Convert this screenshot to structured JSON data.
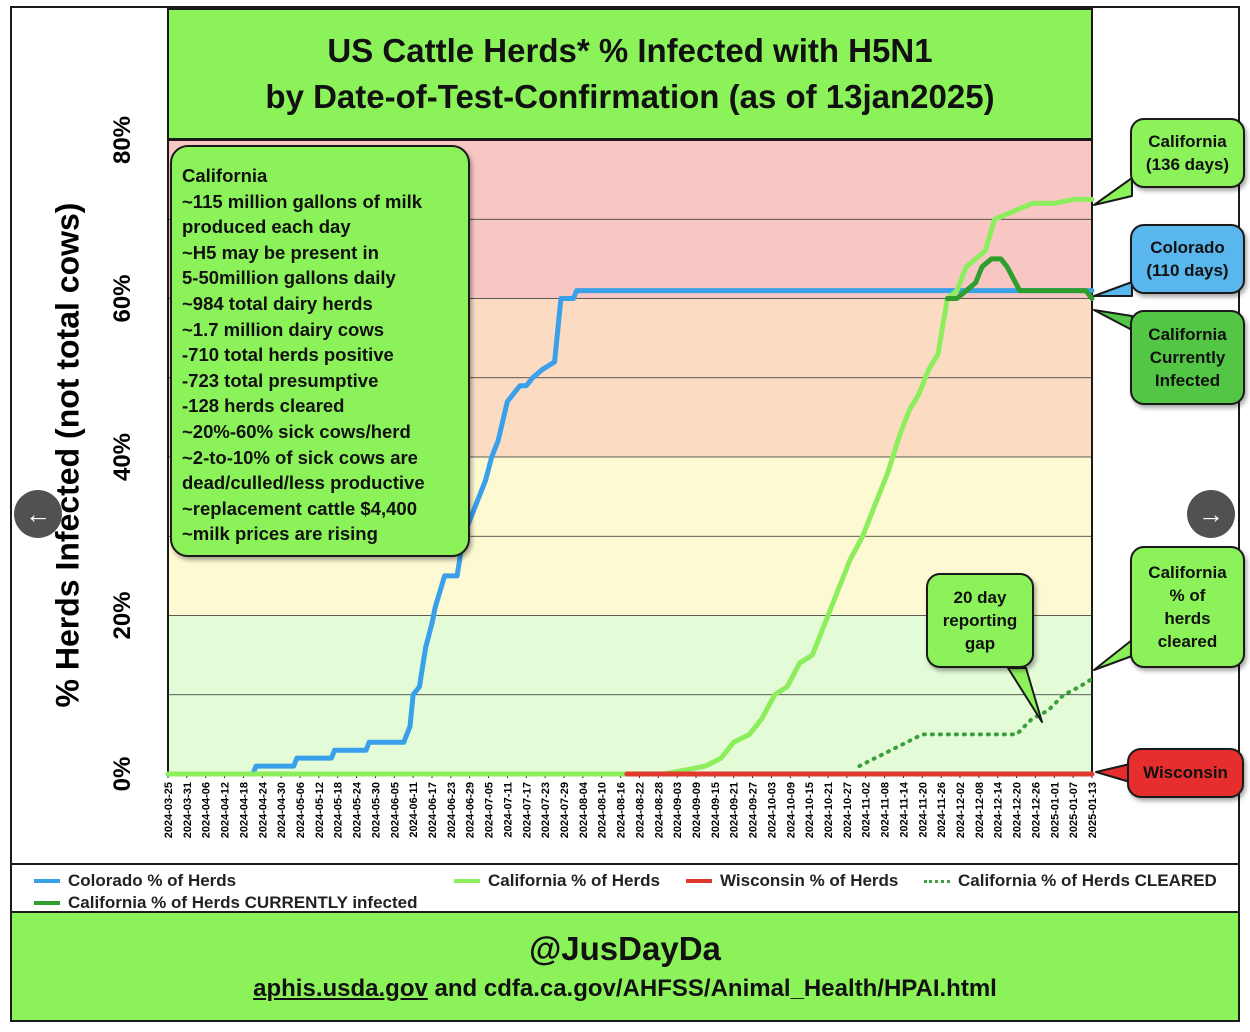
{
  "header": {
    "title_line1": "US Cattle Herds* % Infected with H5N1",
    "title_line2": "by Date-of-Test-Confirmation (as of 13jan2025)"
  },
  "info_box": {
    "lines": [
      " California",
      "~115 million gallons of milk",
      "produced each day",
      "~H5 may be present in",
      "5-50million gallons daily",
      "~984 total dairy herds",
      "~1.7 million dairy cows",
      "-710 total herds positive",
      "-723 total presumptive",
      "-128 herds cleared",
      "~20%-60% sick cows/herd",
      "~2-to-10% of sick cows are",
      "dead/culled/less productive",
      "~replacement cattle $4,400",
      " ~milk prices are rising"
    ]
  },
  "callouts": {
    "california_days": [
      "California",
      "(136 days)"
    ],
    "colorado_days": [
      "Colorado",
      "(110 days)"
    ],
    "california_current": [
      "California",
      "Currently",
      "Infected"
    ],
    "california_cleared": [
      "California",
      "% of",
      "herds",
      "cleared"
    ],
    "wisconsin": [
      "Wisconsin"
    ],
    "reporting_gap": [
      "20 day",
      "reporting",
      "gap"
    ]
  },
  "legend": {
    "colorado": "Colorado % of Herds",
    "california": "California % of Herds",
    "wisconsin": "Wisconsin % of Herds",
    "california_cleared": "California % of Herds CLEARED",
    "california_current": "California % of Herds CURRENTLY infected"
  },
  "footer": {
    "handle": "@JusDayDa",
    "source_link": "aphis.usda.gov",
    "source_rest": " and cdfa.ca.gov/AHFSS/Animal_Health/HPAI.html"
  },
  "nav": {
    "prev_icon": "←",
    "next_icon": "→"
  },
  "colors": {
    "colorado": "#3aa0ea",
    "california": "#8cee5c",
    "wisconsin": "#e03a2f",
    "california_current": "#2e9e2e",
    "california_cleared": "#3aa03a",
    "band_red": "#f8c7c3",
    "band_orange": "#fbdcc3",
    "band_yellow": "#fdf9d2",
    "band_green": "#e4fbd8",
    "callout_green": "#8cf25a",
    "callout_dark_green": "#54c646",
    "callout_blue": "#5ab7ee",
    "callout_red": "#e62e2e"
  },
  "chart_data": {
    "type": "line",
    "title": "US Cattle Herds* % Infected with H5N1 by Date-of-Test-Confirmation (as of 13jan2025)",
    "ylabel": "% Herds Infected (not total cows)",
    "xlabel": "",
    "x_start": "2024-03-25",
    "x_end": "2025-01-13",
    "x_ticks": [
      "2024-03-25",
      "2024-03-31",
      "2024-04-06",
      "2024-04-12",
      "2024-04-18",
      "2024-04-24",
      "2024-04-30",
      "2024-05-06",
      "2024-05-12",
      "2024-05-18",
      "2024-05-24",
      "2024-05-30",
      "2024-06-05",
      "2024-06-11",
      "2024-06-17",
      "2024-06-23",
      "2024-06-29",
      "2024-07-05",
      "2024-07-11",
      "2024-07-17",
      "2024-07-23",
      "2024-07-29",
      "2024-08-04",
      "2024-08-10",
      "2024-08-16",
      "2024-08-22",
      "2024-08-28",
      "2024-09-03",
      "2024-09-09",
      "2024-09-15",
      "2024-09-21",
      "2024-09-27",
      "2024-10-03",
      "2024-10-09",
      "2024-10-15",
      "2024-10-21",
      "2024-10-27",
      "2024-11-02",
      "2024-11-08",
      "2024-11-14",
      "2024-11-20",
      "2024-11-26",
      "2024-12-02",
      "2024-12-08",
      "2024-12-14",
      "2024-12-20",
      "2024-12-26",
      "2025-01-01",
      "2025-01-07",
      "2025-01-13"
    ],
    "yticks": [
      0,
      20,
      40,
      60,
      80
    ],
    "ytick_labels": [
      "0%",
      "20%",
      "40%",
      "60%",
      "80%"
    ],
    "ylim": [
      0,
      80
    ],
    "grid": true,
    "background_bands": [
      {
        "from": 0,
        "to": 20,
        "color": "#e4fbd8"
      },
      {
        "from": 20,
        "to": 40,
        "color": "#fdf9d2"
      },
      {
        "from": 40,
        "to": 60,
        "color": "#fbdcc3"
      },
      {
        "from": 60,
        "to": 80,
        "color": "#f8c7c3"
      }
    ],
    "series": [
      {
        "name": "Colorado % of Herds",
        "style": "solid",
        "points": [
          [
            "2024-03-25",
            0
          ],
          [
            "2024-04-21",
            0
          ],
          [
            "2024-04-22",
            1
          ],
          [
            "2024-05-04",
            1
          ],
          [
            "2024-05-05",
            2
          ],
          [
            "2024-05-16",
            2
          ],
          [
            "2024-05-17",
            3
          ],
          [
            "2024-05-27",
            3
          ],
          [
            "2024-05-28",
            4
          ],
          [
            "2024-06-08",
            4
          ],
          [
            "2024-06-10",
            6
          ],
          [
            "2024-06-11",
            10
          ],
          [
            "2024-06-13",
            11
          ],
          [
            "2024-06-15",
            16
          ],
          [
            "2024-06-17",
            19
          ],
          [
            "2024-06-18",
            21
          ],
          [
            "2024-06-21",
            25
          ],
          [
            "2024-06-25",
            25
          ],
          [
            "2024-06-27",
            30
          ],
          [
            "2024-06-28",
            31
          ],
          [
            "2024-07-02",
            35
          ],
          [
            "2024-07-04",
            37
          ],
          [
            "2024-07-06",
            40
          ],
          [
            "2024-07-08",
            42
          ],
          [
            "2024-07-11",
            47
          ],
          [
            "2024-07-13",
            48
          ],
          [
            "2024-07-15",
            49
          ],
          [
            "2024-07-17",
            49
          ],
          [
            "2024-07-19",
            50
          ],
          [
            "2024-07-22",
            51
          ],
          [
            "2024-07-26",
            52
          ],
          [
            "2024-07-28",
            60
          ],
          [
            "2024-08-01",
            60
          ],
          [
            "2024-08-02",
            61
          ],
          [
            "2025-01-13",
            61
          ]
        ]
      },
      {
        "name": "California % of Herds",
        "style": "solid",
        "points": [
          [
            "2024-03-25",
            0
          ],
          [
            "2024-08-30",
            0
          ],
          [
            "2024-09-03",
            0.3
          ],
          [
            "2024-09-07",
            0.6
          ],
          [
            "2024-09-12",
            1
          ],
          [
            "2024-09-17",
            2
          ],
          [
            "2024-09-21",
            4
          ],
          [
            "2024-09-26",
            5
          ],
          [
            "2024-09-30",
            7
          ],
          [
            "2024-10-04",
            10
          ],
          [
            "2024-10-08",
            11
          ],
          [
            "2024-10-12",
            14
          ],
          [
            "2024-10-16",
            15
          ],
          [
            "2024-10-20",
            19
          ],
          [
            "2024-10-24",
            23
          ],
          [
            "2024-10-28",
            27
          ],
          [
            "2024-11-01",
            30
          ],
          [
            "2024-11-05",
            34
          ],
          [
            "2024-11-09",
            38
          ],
          [
            "2024-11-13",
            43
          ],
          [
            "2024-11-16",
            46
          ],
          [
            "2024-11-19",
            48
          ],
          [
            "2024-11-22",
            51
          ],
          [
            "2024-11-25",
            53
          ],
          [
            "2024-11-28",
            60
          ],
          [
            "2024-12-01",
            61
          ],
          [
            "2024-12-04",
            64
          ],
          [
            "2024-12-07",
            65
          ],
          [
            "2024-12-10",
            66
          ],
          [
            "2024-12-13",
            70
          ],
          [
            "2024-12-19",
            71
          ],
          [
            "2024-12-25",
            72
          ],
          [
            "2025-01-01",
            72
          ],
          [
            "2025-01-07",
            72.5
          ],
          [
            "2025-01-13",
            72.5
          ]
        ]
      },
      {
        "name": "California % of Herds CURRENTLY infected",
        "style": "solid",
        "points": [
          [
            "2024-11-28",
            60
          ],
          [
            "2024-12-01",
            60
          ],
          [
            "2024-12-04",
            61
          ],
          [
            "2024-12-07",
            62
          ],
          [
            "2024-12-09",
            64
          ],
          [
            "2024-12-12",
            65
          ],
          [
            "2024-12-15",
            65
          ],
          [
            "2024-12-17",
            64
          ],
          [
            "2024-12-21",
            61
          ],
          [
            "2024-12-26",
            61
          ],
          [
            "2025-01-01",
            61
          ],
          [
            "2025-01-07",
            61
          ],
          [
            "2025-01-11",
            61
          ],
          [
            "2025-01-13",
            60
          ]
        ]
      },
      {
        "name": "Wisconsin % of Herds",
        "style": "solid",
        "points": [
          [
            "2024-08-18",
            0
          ],
          [
            "2025-01-13",
            0
          ]
        ]
      },
      {
        "name": "California % of Herds CLEARED",
        "style": "dotted",
        "points": [
          [
            "2024-10-31",
            1
          ],
          [
            "2024-11-05",
            2
          ],
          [
            "2024-11-10",
            3
          ],
          [
            "2024-11-15",
            4
          ],
          [
            "2024-11-20",
            5
          ],
          [
            "2024-11-25",
            5
          ],
          [
            "2024-11-30",
            5
          ],
          [
            "2024-12-05",
            5
          ],
          [
            "2024-12-10",
            5
          ],
          [
            "2024-12-15",
            5
          ],
          [
            "2024-12-20",
            5
          ],
          [
            "2024-12-25",
            7
          ],
          [
            "2024-12-30",
            8
          ],
          [
            "2025-01-04",
            10
          ],
          [
            "2025-01-09",
            11
          ],
          [
            "2025-01-13",
            12
          ]
        ]
      }
    ]
  }
}
